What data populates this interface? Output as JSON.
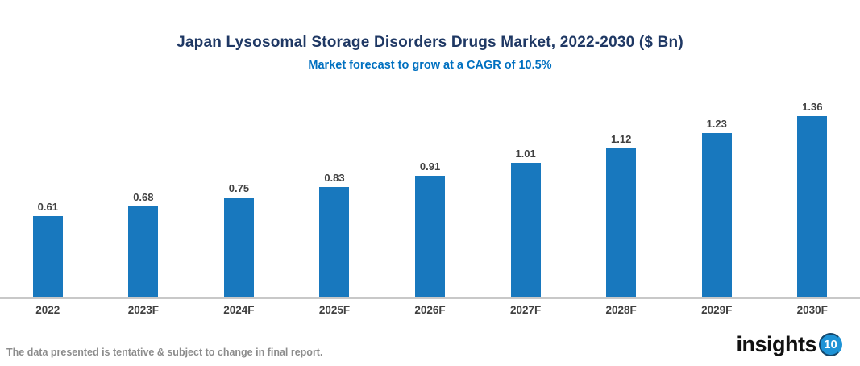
{
  "chart_data": {
    "type": "bar",
    "title": "Japan Lysosomal Storage Disorders Drugs Market, 2022-2030 ($ Bn)",
    "subtitle": "Market forecast to grow at a CAGR of 10.5%",
    "categories": [
      "2022",
      "2023F",
      "2024F",
      "2025F",
      "2026F",
      "2027F",
      "2028F",
      "2029F",
      "2030F"
    ],
    "values": [
      0.61,
      0.68,
      0.75,
      0.83,
      0.91,
      1.01,
      1.12,
      1.23,
      1.36
    ],
    "value_labels": [
      "0.61",
      "0.68",
      "0.75",
      "0.83",
      "0.91",
      "1.01",
      "1.12",
      "1.23",
      "1.36"
    ],
    "xlabel": "",
    "ylabel": "",
    "ylim": [
      0,
      1.6
    ],
    "grid": false,
    "legend": "none",
    "bar_color": "#1878BE"
  },
  "footer": {
    "disclaimer": "The data presented is tentative & subject to change in final report.",
    "logo_text": "insights",
    "logo_badge": "10"
  },
  "colors": {
    "title_text": "#1F3864",
    "subtitle_text": "#0070C0",
    "bar": "#1878BE",
    "data_label": "#404040",
    "axis_line": "#C8C8C8",
    "disclaimer_text": "#8C8C8C",
    "logo_badge_bg": "#1E93D6"
  }
}
